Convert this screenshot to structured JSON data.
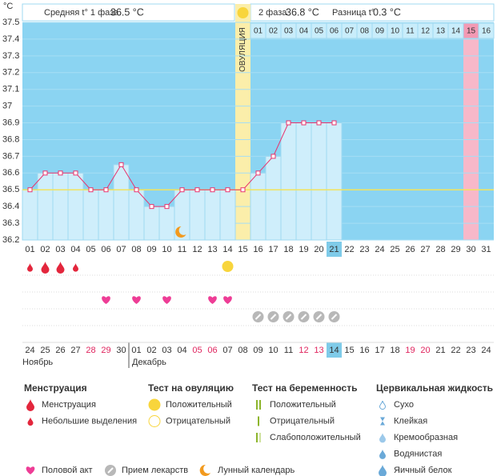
{
  "header": {
    "phase1_label": "Средняя t° 1 фаза",
    "phase1_value": "36.5 °C",
    "phase2_label": "2 фаза",
    "phase2_value": "36.8 °C",
    "diff_label": "Разница t°",
    "diff_value": "0.3 °C"
  },
  "chart_data": {
    "type": "line",
    "y_label": "°C",
    "categories": [
      "01",
      "02",
      "03",
      "04",
      "05",
      "06",
      "07",
      "08",
      "09",
      "10",
      "11",
      "12",
      "13",
      "14",
      "15",
      "16",
      "17",
      "18",
      "19",
      "20",
      "21",
      "22",
      "23",
      "24",
      "25",
      "26",
      "27",
      "28",
      "29",
      "30",
      "31"
    ],
    "top_labels": [
      null,
      null,
      null,
      null,
      null,
      null,
      null,
      null,
      null,
      null,
      null,
      null,
      null,
      null,
      "ОВУЛЯЦИЯ",
      "01",
      "02",
      "03",
      "04",
      "05",
      "06",
      "07",
      "08",
      "09",
      "10",
      "11",
      "12",
      "13",
      "14",
      "15",
      "16"
    ],
    "series": [
      {
        "color": "#e8336d",
        "values": [
          36.5,
          36.6,
          36.6,
          36.6,
          36.5,
          36.5,
          36.65,
          36.5,
          36.4,
          36.4,
          36.5,
          36.5,
          36.5,
          36.5,
          36.5,
          36.6,
          36.7,
          36.9,
          36.9,
          36.9,
          36.9,
          null,
          null,
          null,
          null,
          null,
          null,
          null,
          null,
          null,
          null
        ]
      }
    ],
    "average_line": 36.5,
    "average_color": "#f2e35e",
    "ylim": [
      36.2,
      37.5
    ],
    "yticks": [
      37.5,
      37.4,
      37.3,
      37.2,
      37.1,
      37,
      36.9,
      36.8,
      36.7,
      36.6,
      36.5,
      36.4,
      36.3,
      36.2
    ],
    "grid": true
  },
  "calendar": {
    "dates": [
      "24",
      "25",
      "26",
      "27",
      "28",
      "29",
      "30",
      "01",
      "02",
      "03",
      "04",
      "05",
      "06",
      "07",
      "08",
      "09",
      "10",
      "11",
      "12",
      "13",
      "14",
      "15",
      "16",
      "17",
      "18",
      "19",
      "20",
      "21",
      "22",
      "23",
      "24"
    ],
    "months": [
      "Ноябрь",
      "Декабрь"
    ]
  },
  "legend": {
    "groups": [
      {
        "title": "Менструация",
        "items": [
          "Менструация",
          "Небольшие выделения"
        ]
      },
      {
        "title": "Тест на овуляцию",
        "items": [
          "Положительный",
          "Отрицательный"
        ]
      },
      {
        "title": "Тест на беременность",
        "items": [
          "Положительный",
          "Отрицательный",
          "Слабоположительный"
        ]
      },
      {
        "title": "Цервикальная жидкость",
        "items": [
          "Сухо",
          "Клейкая",
          "Кремообразная",
          "Водянистая",
          "Яичный белок"
        ]
      }
    ],
    "extra": [
      "Половой акт",
      "Прием лекарств",
      "Лунный календарь"
    ]
  }
}
